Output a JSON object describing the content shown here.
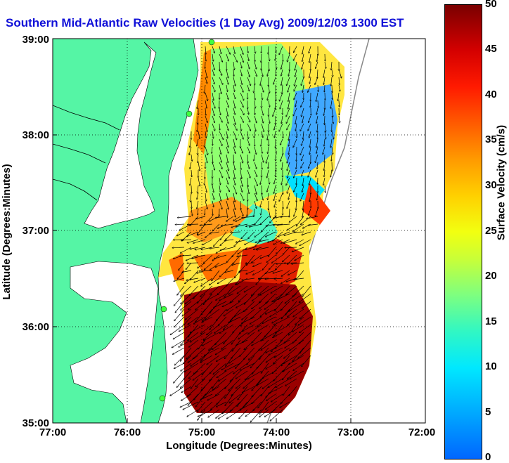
{
  "title": "Southern Mid-Atlantic Raw Velocities (1 Day Avg) 2009/12/03 1300 EST",
  "map": {
    "xlabel": "Longitude (Degrees:Minutes)",
    "ylabel": "Latitude (Degrees:Minutes)",
    "x_ticks": [
      "77:00",
      "76:00",
      "75:00",
      "74:00",
      "73:00",
      "72:00"
    ],
    "y_ticks": [
      "39:00",
      "38:00",
      "37:00",
      "36:00",
      "35:00"
    ],
    "land_color": "#55f5a5",
    "water_color": "#ffffff"
  },
  "colorbar": {
    "label": "Surface Velocity (cm/s)",
    "ticks": [
      "50",
      "45",
      "40",
      "35",
      "30",
      "25",
      "20",
      "15",
      "10",
      "5",
      "0"
    ]
  },
  "chart_data": {
    "type": "heatmap",
    "variable": "Surface Velocity",
    "units": "cm/s",
    "color_range": [
      0,
      50
    ],
    "lon_range": [
      -77,
      -72
    ],
    "lat_range": [
      35,
      39
    ]
  }
}
